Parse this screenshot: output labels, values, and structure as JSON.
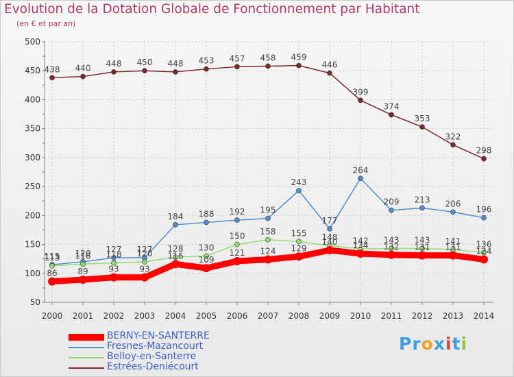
{
  "chart_data": {
    "type": "line",
    "title": "Evolution de la Dotation Globale de Fonctionnement par Habitant",
    "subtitle": "(en € et par an)",
    "xlabel": "",
    "ylabel": "",
    "ylim": [
      50,
      500
    ],
    "yticks": [
      50,
      100,
      150,
      200,
      250,
      300,
      350,
      400,
      450,
      500
    ],
    "categories": [
      "2000",
      "2001",
      "2002",
      "2003",
      "2004",
      "2005",
      "2006",
      "2007",
      "2008",
      "2009",
      "2010",
      "2011",
      "2012",
      "2013",
      "2014"
    ],
    "series": [
      {
        "name": "BERNY-EN-SANTERRE",
        "color": "#ff0000",
        "values": [
          86,
          89,
          93,
          93,
          116,
          109,
          121,
          124,
          129,
          140,
          134,
          132,
          131,
          131,
          124
        ]
      },
      {
        "name": "Fresnes-Mazancourt",
        "color": "#4f8fd0",
        "values": [
          115,
          120,
          127,
          127,
          184,
          188,
          192,
          195,
          243,
          177,
          264,
          209,
          213,
          206,
          196
        ]
      },
      {
        "name": "Belloy-en-Santerre",
        "color": "#90e070",
        "values": [
          113,
          116,
          118,
          120,
          128,
          130,
          150,
          158,
          155,
          148,
          142,
          143,
          143,
          141,
          136
        ]
      },
      {
        "name": "Estrées-Deniécourt",
        "color": "#7a2828",
        "values": [
          438,
          440,
          448,
          450,
          448,
          453,
          457,
          458,
          459,
          446,
          399,
          374,
          353,
          322,
          298
        ]
      }
    ],
    "legend_position": "bottom-left"
  },
  "brand": {
    "letters": [
      "P",
      "r",
      "o",
      "x",
      "i",
      "t",
      "i"
    ],
    "colors": [
      "#3aa0e0",
      "#3aa0e0",
      "#f0a020",
      "#3aa0e0",
      "#e04040",
      "#3aa0e0",
      "#8cc63f"
    ]
  }
}
